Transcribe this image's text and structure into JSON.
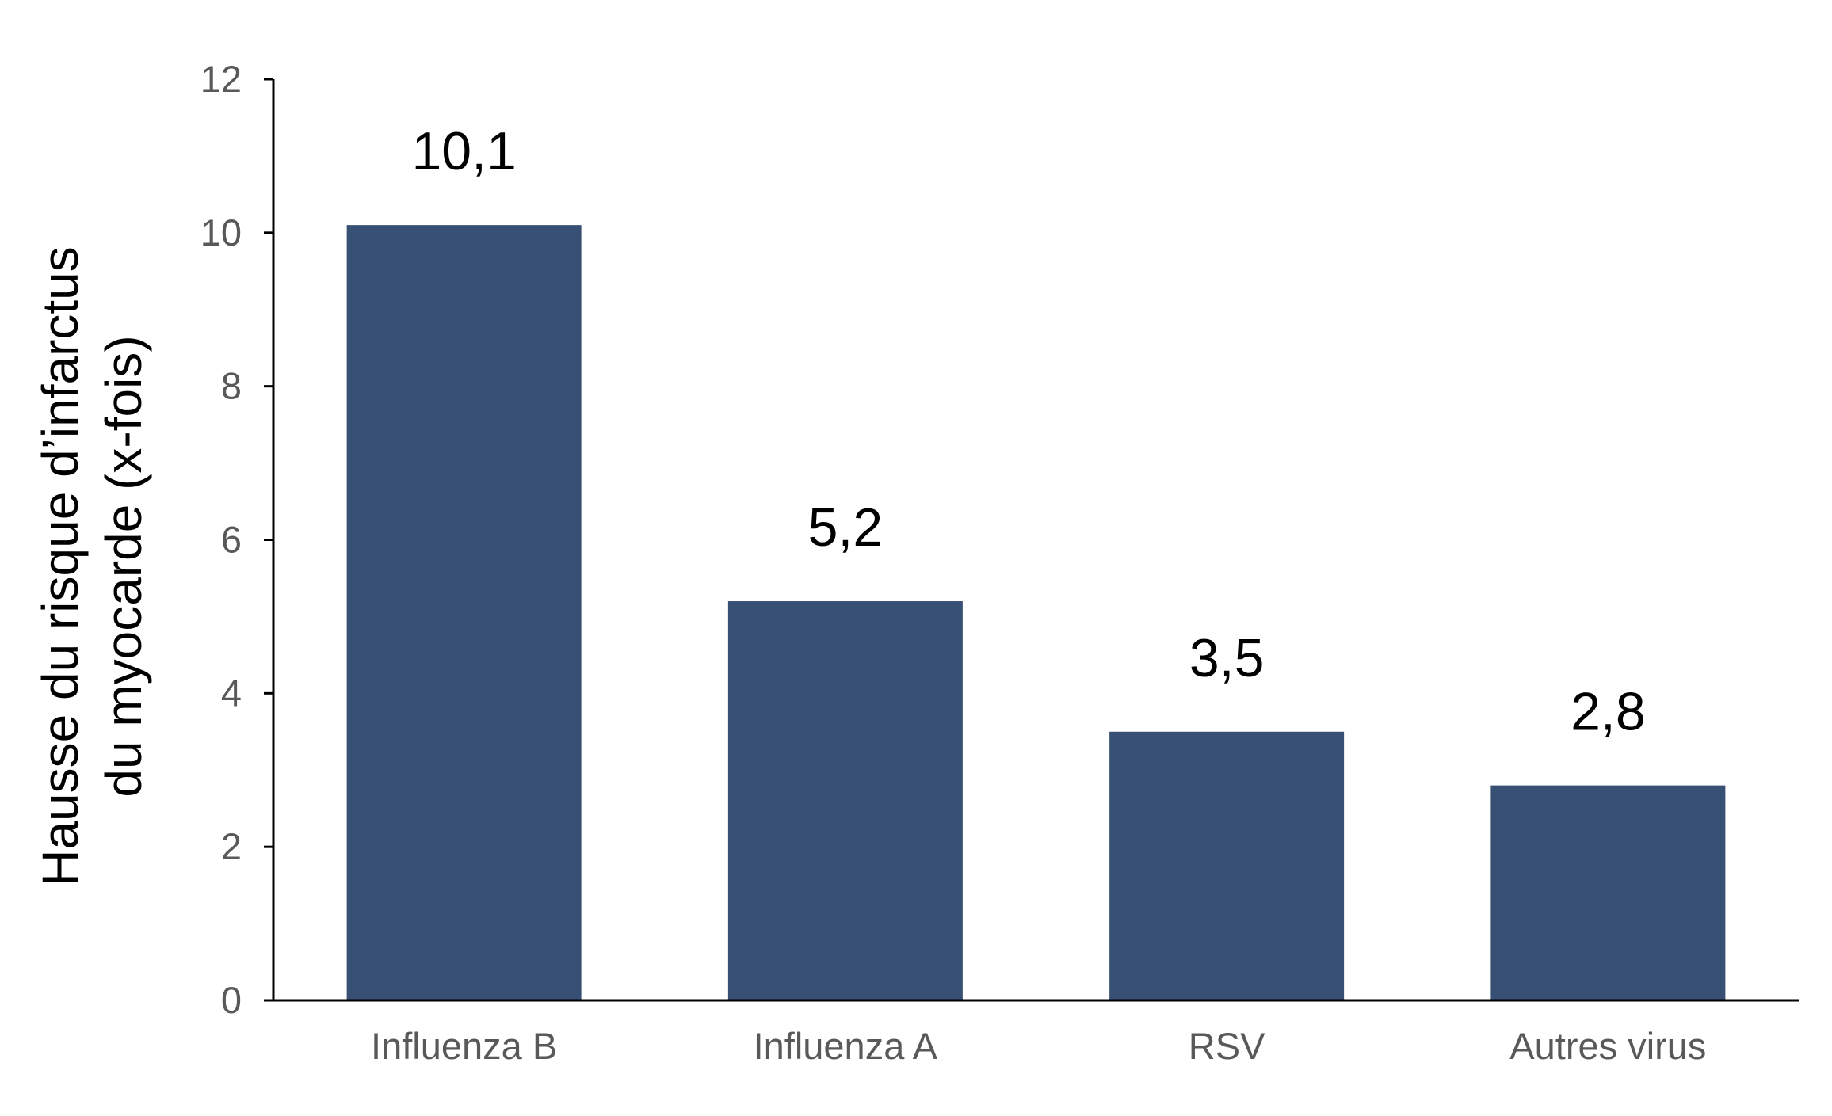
{
  "chart_data": {
    "type": "bar",
    "categories": [
      "Influenza B",
      "Influenza A",
      "RSV",
      "Autres virus"
    ],
    "values": [
      10.1,
      5.2,
      3.5,
      2.8
    ],
    "data_labels": [
      "10,1",
      "5,2",
      "3,5",
      "2,8"
    ],
    "title": "",
    "xlabel": "",
    "ylabel_lines": [
      "Hausse du risque d’infarctus",
      "du myocarde (x-fois)"
    ],
    "ylim": [
      0,
      12
    ],
    "yticks": [
      0,
      2,
      4,
      6,
      8,
      10,
      12
    ],
    "grid": false,
    "legend": "none",
    "colors": {
      "bar": "#375074",
      "axis": "#000000",
      "tick_label": "#595959",
      "data_label": "#000000",
      "axis_title": "#000000"
    }
  }
}
